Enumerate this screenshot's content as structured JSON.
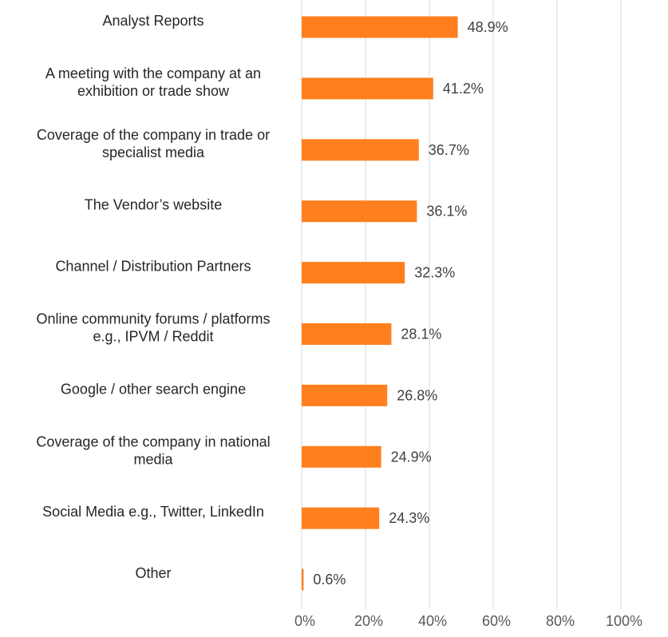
{
  "chart_data": {
    "type": "bar",
    "orientation": "horizontal",
    "title": "",
    "xlabel": "",
    "ylabel": "",
    "categories": [
      [
        "Analyst Reports"
      ],
      [
        "A meeting with the company at an",
        "exhibition or trade show"
      ],
      [
        "Coverage of the company in trade or",
        "specialist media"
      ],
      [
        "The Vendor’s website"
      ],
      [
        "Channel / Distribution Partners"
      ],
      [
        "Online community forums / platforms",
        "e.g., IPVM / Reddit"
      ],
      [
        "Google / other search engine"
      ],
      [
        "Coverage of the company in national",
        "media"
      ],
      [
        "Social Media e.g., Twitter, LinkedIn"
      ],
      [
        "Other"
      ]
    ],
    "values": [
      48.9,
      41.2,
      36.7,
      36.1,
      32.3,
      28.1,
      26.8,
      24.9,
      24.3,
      0.6
    ],
    "value_labels": [
      "48.9%",
      "41.2%",
      "36.7%",
      "36.1%",
      "32.3%",
      "28.1%",
      "26.8%",
      "24.9%",
      "24.3%",
      "0.6%"
    ],
    "xlim": [
      0,
      100
    ],
    "ticks": [
      0,
      20,
      40,
      60,
      80,
      100
    ],
    "tick_labels": [
      "0%",
      "20%",
      "40%",
      "60%",
      "80%",
      "100%"
    ],
    "bar_color": "#FF7F1F",
    "grid": true,
    "legend": "none"
  }
}
